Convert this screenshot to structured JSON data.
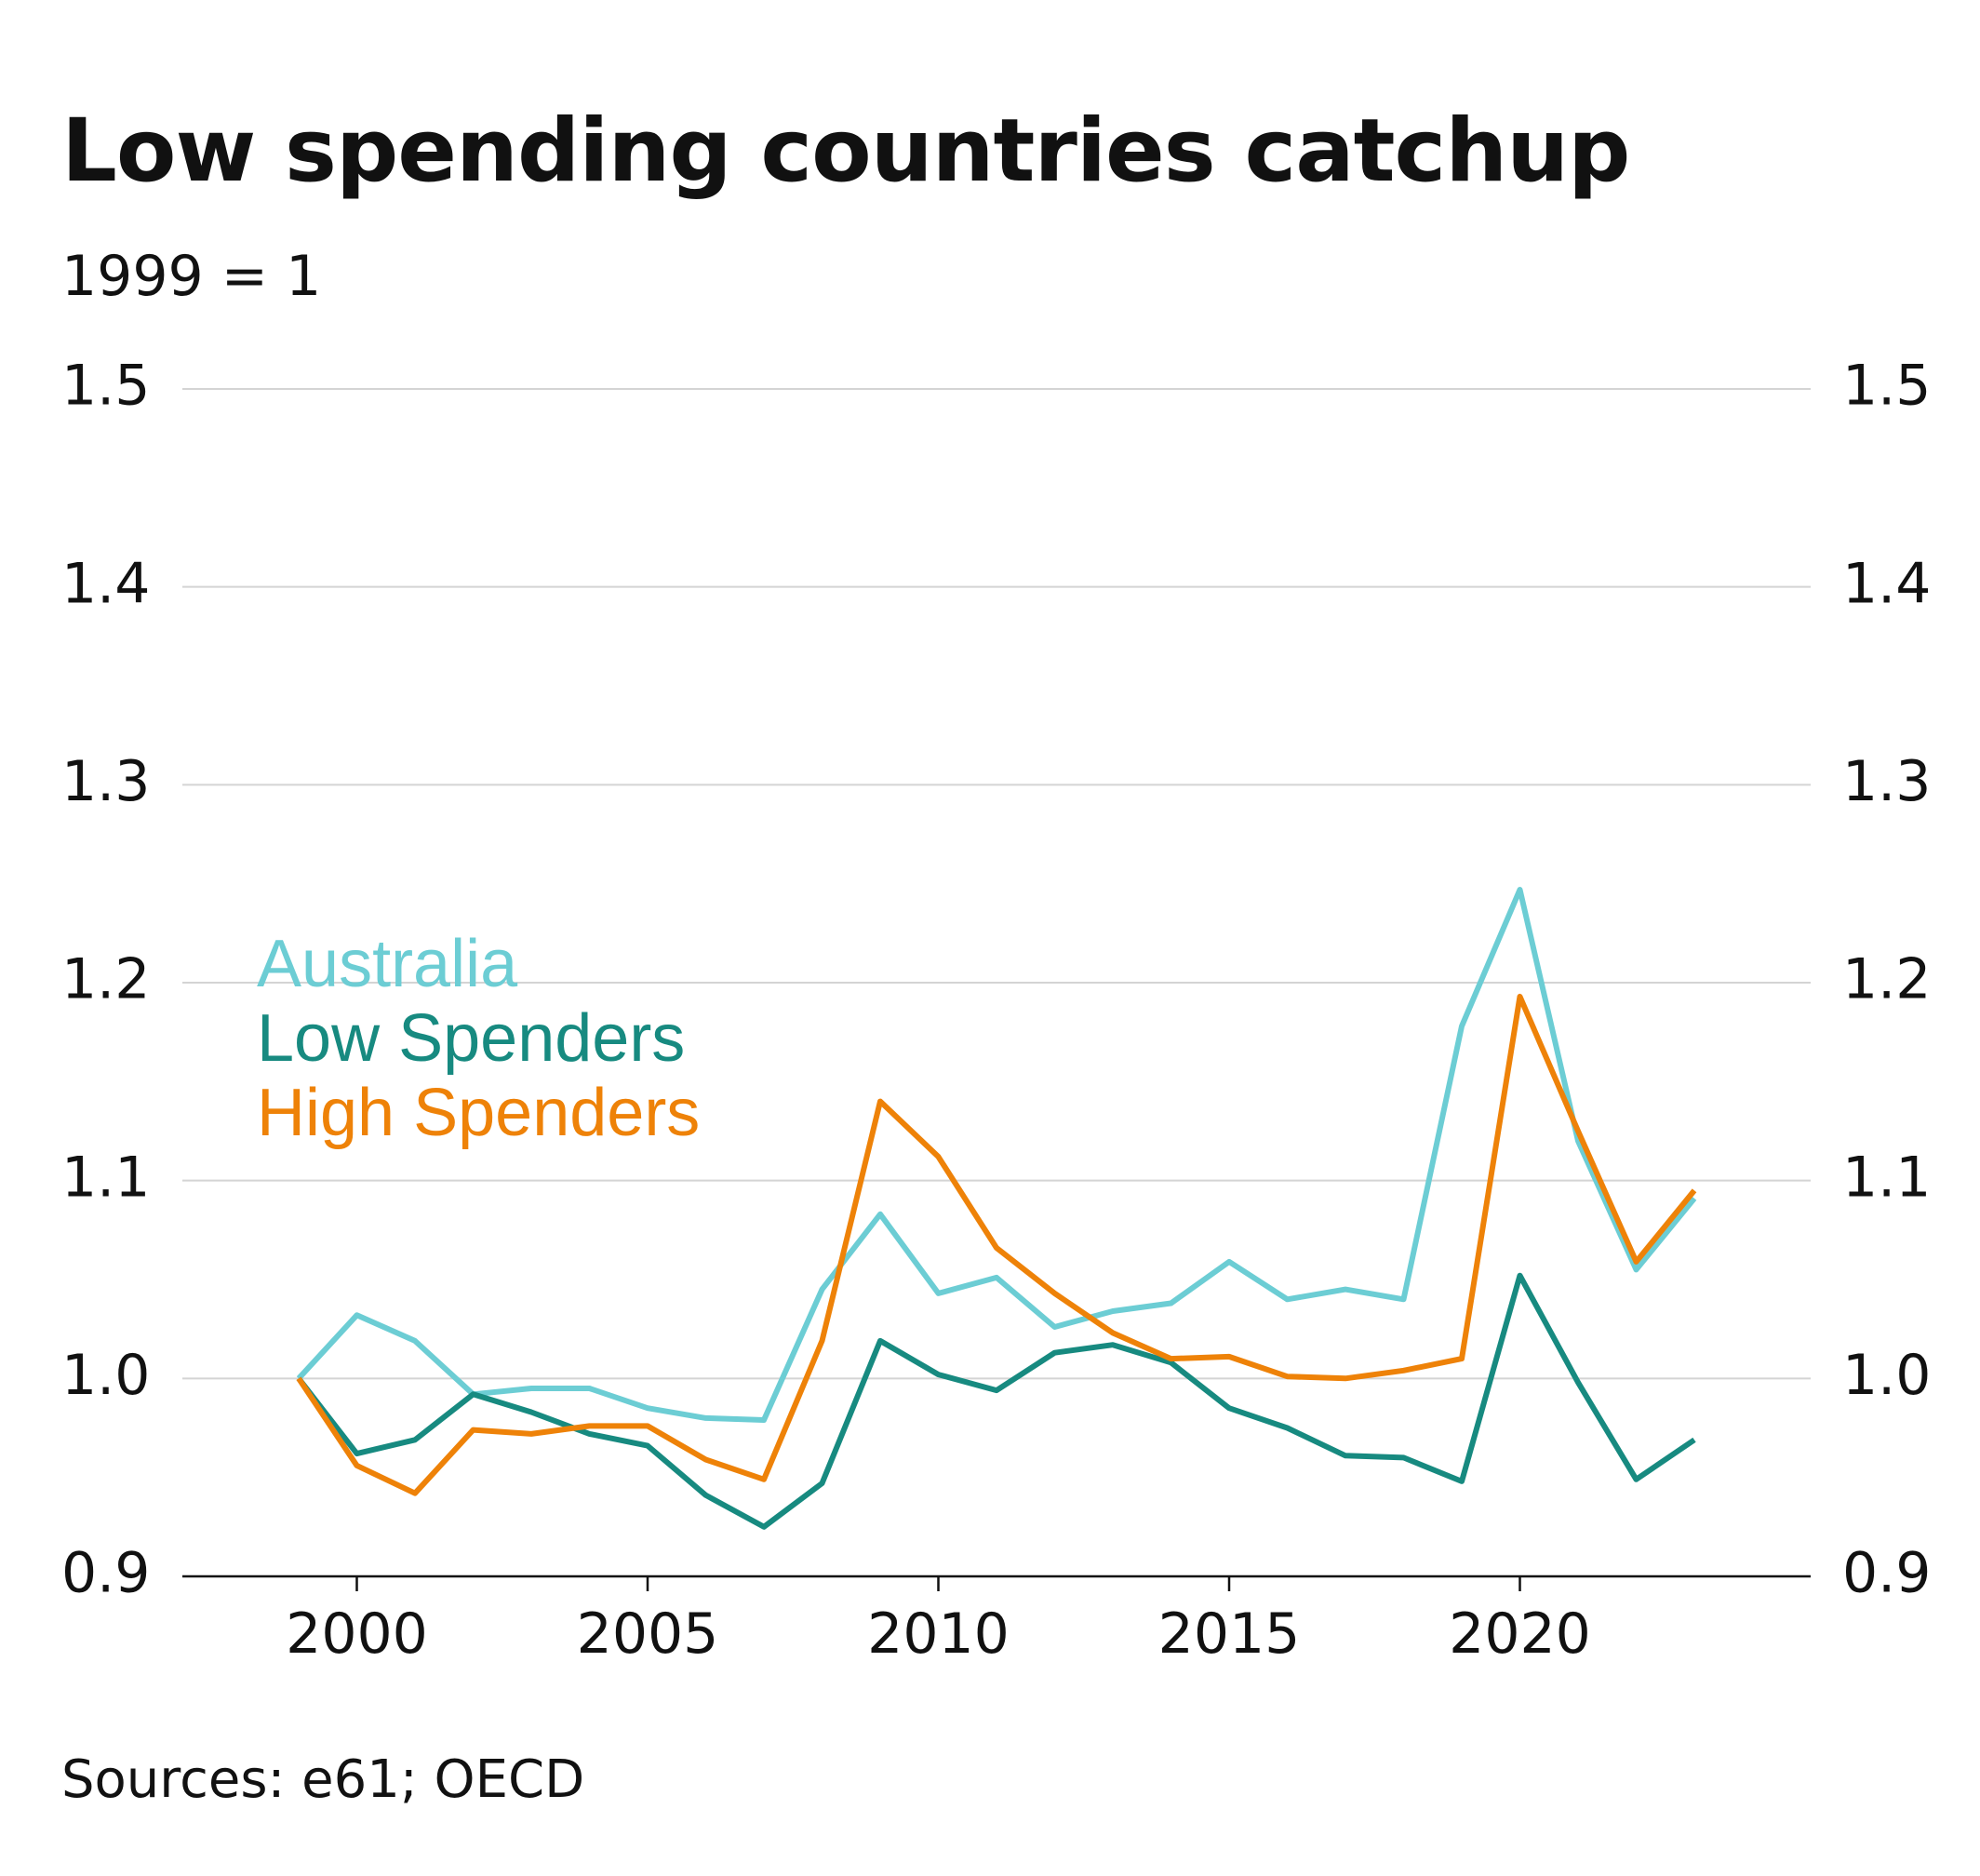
{
  "header": {
    "title": "Low spending countries catchup",
    "subtitle": "1999 = 1"
  },
  "footer": {
    "source": "Sources: e61; OECD"
  },
  "chart_data": {
    "type": "line",
    "title": "Low spending countries catchup",
    "subtitle": "1999 = 1",
    "xlabel": "",
    "ylabel": "",
    "ylim": [
      0.9,
      1.5
    ],
    "xlim": [
      1997,
      2025
    ],
    "y_ticks": [
      "0.9",
      "1.0",
      "1.1",
      "1.2",
      "1.3",
      "1.4",
      "1.5"
    ],
    "x_ticks": [
      "2000",
      "2005",
      "2010",
      "2015",
      "2020"
    ],
    "grid": true,
    "dual_y_axis_labels": true,
    "legend_placement": "middle-left",
    "x": [
      1999,
      2000,
      2001,
      2002,
      2003,
      2004,
      2005,
      2006,
      2007,
      2008,
      2009,
      2010,
      2011,
      2012,
      2013,
      2014,
      2015,
      2016,
      2017,
      2018,
      2019,
      2020,
      2021,
      2022,
      2023
    ],
    "series": [
      {
        "name": "Australia",
        "color": "#6CCDD4",
        "values": [
          1.0,
          1.032,
          1.019,
          0.992,
          0.995,
          0.995,
          0.985,
          0.98,
          0.979,
          1.045,
          1.083,
          1.043,
          1.051,
          1.026,
          1.034,
          1.038,
          1.059,
          1.04,
          1.045,
          1.04,
          1.178,
          1.247,
          1.12,
          1.055,
          1.091
        ]
      },
      {
        "name": "Low Spenders",
        "color": "#178A80",
        "values": [
          1.0,
          0.962,
          0.969,
          0.992,
          0.983,
          0.972,
          0.966,
          0.941,
          0.925,
          0.947,
          1.019,
          1.002,
          0.994,
          1.013,
          1.017,
          1.008,
          0.985,
          0.975,
          0.961,
          0.96,
          0.948,
          1.052,
          0.998,
          0.949,
          0.969
        ]
      },
      {
        "name": "High Spenders",
        "color": "#EE8208",
        "values": [
          1.0,
          0.956,
          0.942,
          0.974,
          0.972,
          0.976,
          0.976,
          0.959,
          0.949,
          1.019,
          1.14,
          1.112,
          1.066,
          1.043,
          1.023,
          1.01,
          1.011,
          1.001,
          1.0,
          1.004,
          1.01,
          1.193,
          1.125,
          1.059,
          1.095
        ]
      }
    ]
  }
}
